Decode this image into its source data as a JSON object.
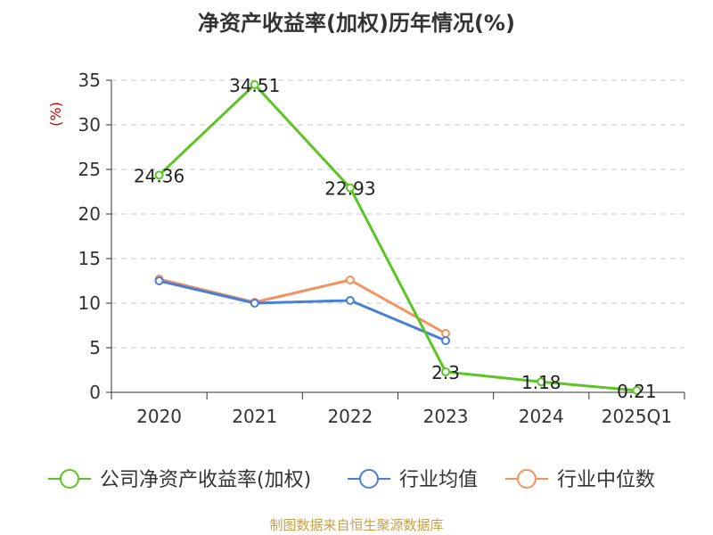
{
  "title": "净资产收益率(加权)历年情况(%)",
  "source": "制图数据来自恒生聚源数据库",
  "chart_data": {
    "type": "line",
    "title": "净资产收益率(加权)历年情况(%)",
    "ylabel": "(%)",
    "xlabel": "",
    "categories": [
      "2020",
      "2021",
      "2022",
      "2023",
      "2024",
      "2025Q1"
    ],
    "ylim": [
      0,
      35
    ],
    "yticks": [
      0,
      5,
      10,
      15,
      20,
      25,
      30,
      35
    ],
    "grid": true,
    "legend_position": "bottom",
    "series": [
      {
        "name": "公司净资产收益率(加权)",
        "color": "#5cc524",
        "values": [
          24.36,
          34.51,
          22.93,
          2.3,
          1.18,
          0.21
        ],
        "labels": [
          "24.36",
          "34.51",
          "22.93",
          "2.3",
          "1.18",
          "0.21"
        ]
      },
      {
        "name": "行业均值",
        "color": "#4a7fd6",
        "values": [
          12.5,
          10.0,
          10.3,
          5.8,
          null,
          null
        ]
      },
      {
        "name": "行业中位数",
        "color": "#f2925e",
        "values": [
          12.7,
          10.1,
          12.6,
          6.6,
          null,
          null
        ]
      }
    ]
  }
}
